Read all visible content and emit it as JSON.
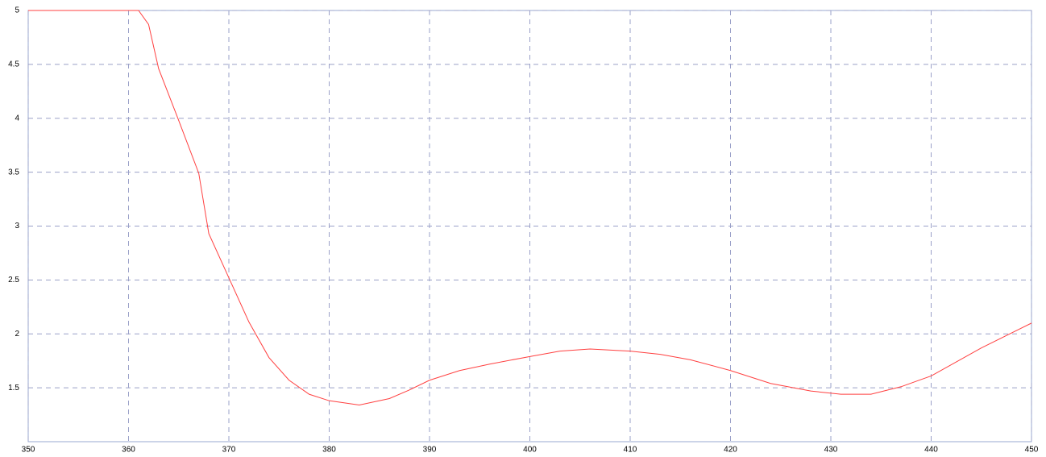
{
  "chart_data": {
    "type": "line",
    "x": [
      350,
      360,
      361,
      362,
      363,
      365,
      367,
      368,
      370,
      372,
      374,
      376,
      378,
      380,
      383,
      386,
      388,
      390,
      393,
      396,
      400,
      403,
      406,
      410,
      413,
      416,
      420,
      424,
      428,
      431,
      434,
      437,
      440,
      445,
      450
    ],
    "series": [
      {
        "color": "#ff4040",
        "values": [
          5,
          5,
          5,
          4.87,
          4.46,
          3.98,
          3.49,
          2.93,
          2.52,
          2.11,
          1.78,
          1.57,
          1.44,
          1.38,
          1.34,
          1.4,
          1.48,
          1.57,
          1.66,
          1.72,
          1.79,
          1.84,
          1.86,
          1.84,
          1.81,
          1.76,
          1.66,
          1.54,
          1.47,
          1.44,
          1.44,
          1.51,
          1.61,
          1.87,
          2.1
        ]
      }
    ],
    "xlim": [
      350,
      450
    ],
    "xticks": [
      350,
      360,
      370,
      380,
      390,
      400,
      410,
      420,
      430,
      440,
      450
    ],
    "ylim": [
      1,
      5
    ],
    "yticks": [
      1.5,
      2,
      2.5,
      3,
      3.5,
      4,
      4.5,
      5
    ],
    "grid": true
  }
}
